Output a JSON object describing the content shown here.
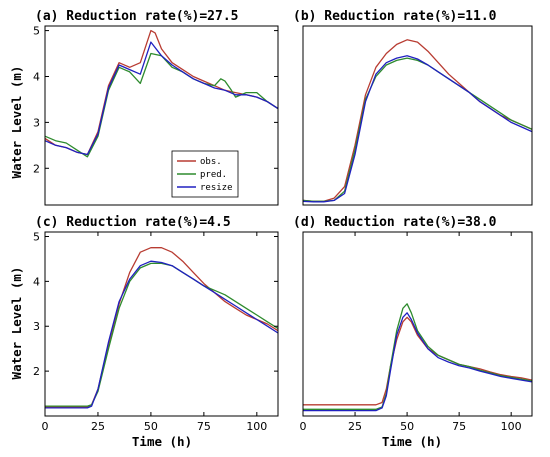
{
  "figure": {
    "ylabel": "Water Level (m)",
    "xlabel": "Time (h)"
  },
  "chart_data": [
    {
      "type": "line",
      "title": "(a) Reduction rate(%)=27.5",
      "xlim": [
        0,
        110
      ],
      "ylim": [
        1.2,
        5.1
      ],
      "xticks": [],
      "yticks": [
        2,
        3,
        4,
        5
      ],
      "legend": {
        "placement": "bottom-right",
        "entries": [
          "obs.",
          "pred.",
          "resize"
        ]
      },
      "series": [
        {
          "name": "obs.",
          "color": "#b83c32",
          "x": [
            0,
            5,
            10,
            15,
            20,
            25,
            30,
            35,
            40,
            45,
            50,
            52,
            55,
            60,
            65,
            70,
            75,
            80,
            85,
            90,
            95,
            100,
            105,
            110
          ],
          "y": [
            2.65,
            2.5,
            2.45,
            2.35,
            2.3,
            2.8,
            3.8,
            4.3,
            4.2,
            4.3,
            5.0,
            4.95,
            4.6,
            4.3,
            4.15,
            4.0,
            3.9,
            3.8,
            3.7,
            3.65,
            3.6,
            3.55,
            3.45,
            3.3
          ]
        },
        {
          "name": "pred.",
          "color": "#2e8b2e",
          "x": [
            0,
            5,
            10,
            15,
            20,
            25,
            30,
            35,
            40,
            45,
            50,
            55,
            60,
            65,
            70,
            75,
            80,
            83,
            85,
            88,
            90,
            95,
            100,
            105,
            110
          ],
          "y": [
            2.7,
            2.6,
            2.55,
            2.4,
            2.25,
            2.7,
            3.7,
            4.2,
            4.1,
            3.85,
            4.5,
            4.45,
            4.2,
            4.1,
            3.95,
            3.85,
            3.8,
            3.95,
            3.9,
            3.7,
            3.55,
            3.65,
            3.65,
            3.45,
            3.3
          ]
        },
        {
          "name": "resize",
          "color": "#2020c0",
          "x": [
            0,
            5,
            10,
            15,
            20,
            25,
            30,
            35,
            40,
            45,
            50,
            55,
            60,
            65,
            70,
            75,
            80,
            85,
            90,
            95,
            100,
            105,
            110
          ],
          "y": [
            2.6,
            2.5,
            2.45,
            2.35,
            2.3,
            2.75,
            3.75,
            4.25,
            4.15,
            4.05,
            4.75,
            4.45,
            4.25,
            4.1,
            3.95,
            3.85,
            3.75,
            3.7,
            3.6,
            3.6,
            3.55,
            3.45,
            3.3
          ]
        }
      ]
    },
    {
      "type": "line",
      "title": "(b) Reduction rate(%)=11.0",
      "xlim": [
        0,
        110
      ],
      "ylim": [
        1.2,
        5.1
      ],
      "xticks": [],
      "yticks": [],
      "series": [
        {
          "name": "obs.",
          "color": "#b83c32",
          "x": [
            0,
            5,
            10,
            15,
            20,
            25,
            30,
            35,
            40,
            45,
            50,
            55,
            60,
            65,
            70,
            75,
            80,
            85,
            90,
            95,
            100,
            105,
            110
          ],
          "y": [
            1.3,
            1.28,
            1.28,
            1.35,
            1.6,
            2.5,
            3.6,
            4.2,
            4.5,
            4.7,
            4.8,
            4.75,
            4.55,
            4.3,
            4.05,
            3.85,
            3.65,
            3.45,
            3.3,
            3.15,
            3.05,
            2.95,
            2.85
          ]
        },
        {
          "name": "pred.",
          "color": "#2e8b2e",
          "x": [
            0,
            5,
            10,
            15,
            20,
            25,
            30,
            35,
            40,
            45,
            50,
            55,
            60,
            65,
            70,
            75,
            80,
            85,
            90,
            95,
            100,
            105,
            110
          ],
          "y": [
            1.3,
            1.28,
            1.28,
            1.3,
            1.5,
            2.4,
            3.5,
            4.0,
            4.25,
            4.35,
            4.4,
            4.35,
            4.25,
            4.1,
            3.95,
            3.8,
            3.65,
            3.5,
            3.35,
            3.2,
            3.05,
            2.95,
            2.85
          ]
        },
        {
          "name": "resize",
          "color": "#2020c0",
          "x": [
            0,
            5,
            10,
            15,
            20,
            25,
            30,
            35,
            40,
            45,
            50,
            55,
            60,
            65,
            70,
            75,
            80,
            85,
            90,
            95,
            100,
            105,
            110
          ],
          "y": [
            1.28,
            1.27,
            1.27,
            1.3,
            1.45,
            2.3,
            3.45,
            4.05,
            4.3,
            4.4,
            4.45,
            4.38,
            4.25,
            4.1,
            3.95,
            3.8,
            3.65,
            3.45,
            3.3,
            3.15,
            3.0,
            2.9,
            2.8
          ]
        }
      ]
    },
    {
      "type": "line",
      "title": "(c) Reduction rate(%)=4.5",
      "xlim": [
        0,
        110
      ],
      "ylim": [
        1.0,
        5.1
      ],
      "xticks": [
        0,
        25,
        50,
        75,
        100
      ],
      "yticks": [
        2,
        3,
        4,
        5
      ],
      "series": [
        {
          "name": "obs.",
          "color": "#b83c32",
          "x": [
            0,
            5,
            10,
            15,
            20,
            22,
            25,
            30,
            35,
            40,
            45,
            50,
            55,
            60,
            65,
            70,
            75,
            80,
            85,
            90,
            95,
            100,
            105,
            110
          ],
          "y": [
            1.2,
            1.2,
            1.2,
            1.2,
            1.2,
            1.25,
            1.6,
            2.6,
            3.5,
            4.2,
            4.65,
            4.75,
            4.75,
            4.65,
            4.45,
            4.2,
            3.95,
            3.75,
            3.55,
            3.4,
            3.25,
            3.15,
            3.05,
            2.9
          ]
        },
        {
          "name": "pred.",
          "color": "#2e8b2e",
          "x": [
            0,
            5,
            10,
            15,
            20,
            22,
            25,
            30,
            35,
            40,
            45,
            50,
            55,
            60,
            65,
            70,
            75,
            80,
            85,
            90,
            95,
            100,
            105,
            110
          ],
          "y": [
            1.22,
            1.22,
            1.22,
            1.22,
            1.22,
            1.25,
            1.55,
            2.5,
            3.4,
            4.0,
            4.3,
            4.4,
            4.4,
            4.35,
            4.2,
            4.05,
            3.9,
            3.8,
            3.7,
            3.55,
            3.4,
            3.25,
            3.1,
            2.95
          ]
        },
        {
          "name": "resize",
          "color": "#2020c0",
          "x": [
            0,
            5,
            10,
            15,
            20,
            22,
            25,
            30,
            35,
            40,
            45,
            50,
            55,
            60,
            65,
            70,
            75,
            80,
            85,
            90,
            95,
            100,
            105,
            110
          ],
          "y": [
            1.18,
            1.18,
            1.18,
            1.18,
            1.18,
            1.22,
            1.6,
            2.65,
            3.55,
            4.05,
            4.35,
            4.45,
            4.42,
            4.35,
            4.2,
            4.05,
            3.9,
            3.75,
            3.6,
            3.45,
            3.3,
            3.15,
            3.0,
            2.85
          ]
        }
      ]
    },
    {
      "type": "line",
      "title": "(d) Reduction rate(%)=38.0",
      "xlim": [
        0,
        110
      ],
      "ylim": [
        1.0,
        5.1
      ],
      "xticks": [
        0,
        25,
        50,
        75,
        100
      ],
      "yticks": [],
      "series": [
        {
          "name": "obs.",
          "color": "#b83c32",
          "x": [
            0,
            10,
            20,
            30,
            35,
            38,
            40,
            42,
            45,
            48,
            50,
            52,
            55,
            60,
            65,
            70,
            75,
            80,
            85,
            90,
            95,
            100,
            105,
            110
          ],
          "y": [
            1.25,
            1.25,
            1.25,
            1.25,
            1.25,
            1.3,
            1.6,
            2.1,
            2.7,
            3.1,
            3.2,
            3.1,
            2.8,
            2.5,
            2.35,
            2.25,
            2.15,
            2.1,
            2.05,
            1.98,
            1.92,
            1.88,
            1.85,
            1.8
          ]
        },
        {
          "name": "pred.",
          "color": "#2e8b2e",
          "x": [
            0,
            10,
            20,
            30,
            35,
            38,
            40,
            42,
            45,
            48,
            50,
            52,
            55,
            60,
            65,
            70,
            75,
            80,
            85,
            90,
            95,
            100,
            105,
            110
          ],
          "y": [
            1.15,
            1.15,
            1.15,
            1.15,
            1.15,
            1.2,
            1.5,
            2.1,
            2.9,
            3.4,
            3.5,
            3.3,
            2.9,
            2.55,
            2.35,
            2.25,
            2.15,
            2.1,
            2.02,
            1.96,
            1.9,
            1.86,
            1.82,
            1.78
          ]
        },
        {
          "name": "resize",
          "color": "#2020c0",
          "x": [
            0,
            10,
            20,
            30,
            35,
            38,
            40,
            42,
            45,
            48,
            50,
            52,
            55,
            60,
            65,
            70,
            75,
            80,
            85,
            90,
            95,
            100,
            105,
            110
          ],
          "y": [
            1.12,
            1.12,
            1.12,
            1.12,
            1.12,
            1.18,
            1.45,
            2.0,
            2.8,
            3.2,
            3.3,
            3.15,
            2.85,
            2.5,
            2.3,
            2.2,
            2.12,
            2.07,
            2.0,
            1.94,
            1.88,
            1.84,
            1.8,
            1.76
          ]
        }
      ]
    }
  ]
}
